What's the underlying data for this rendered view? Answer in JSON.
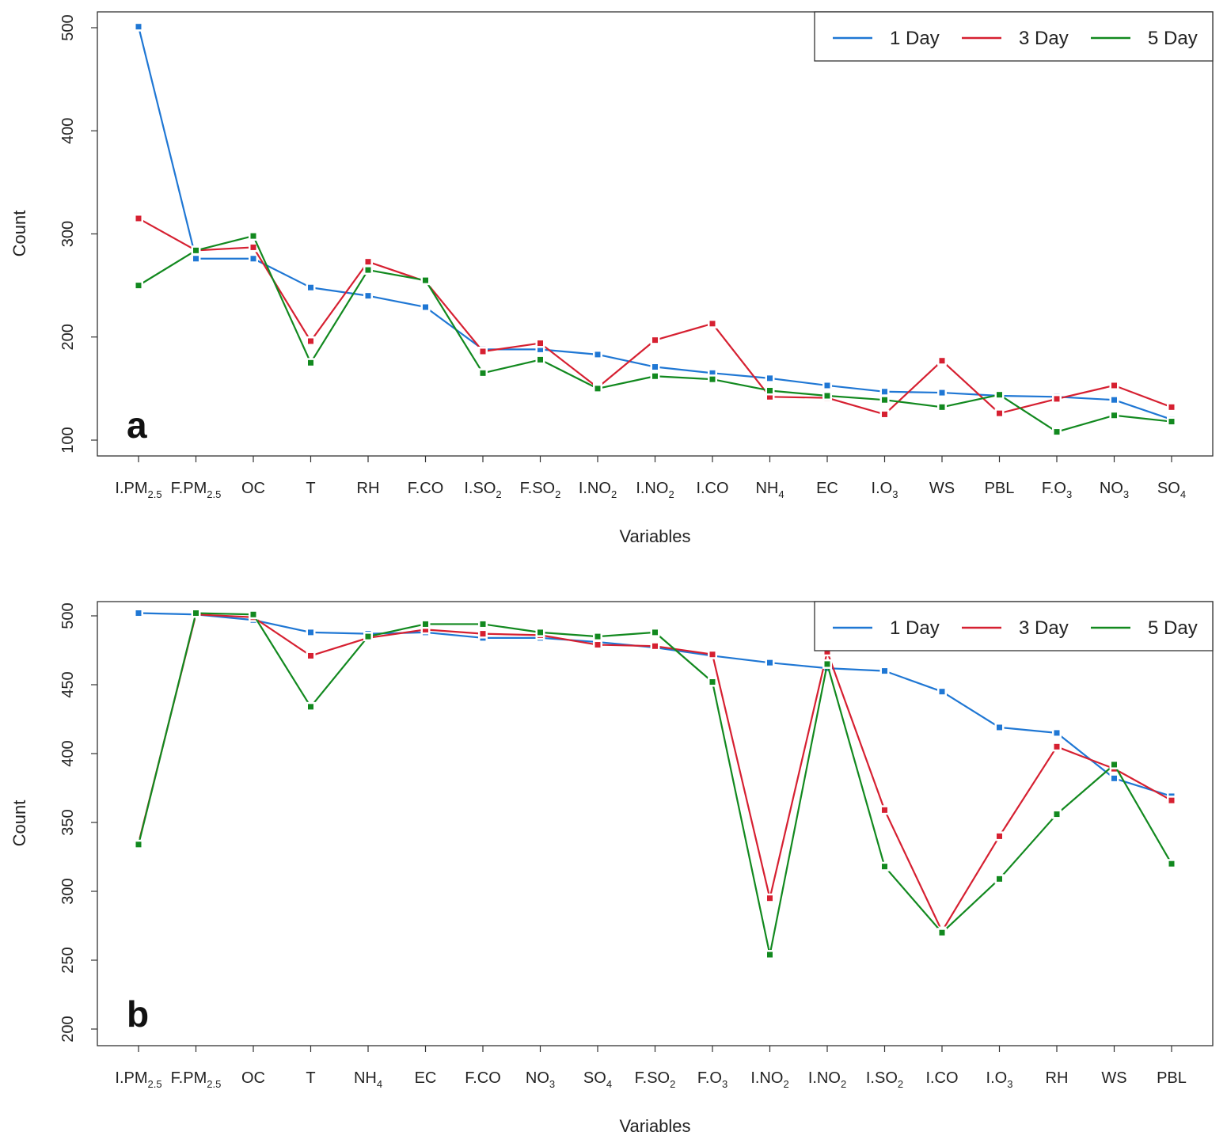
{
  "colors": {
    "series_1": "#1f77d4",
    "series_2": "#d62031",
    "series_3": "#12891f",
    "axis": "#333333"
  },
  "chart_data": [
    {
      "type": "line",
      "panel_label": "a",
      "xlabel": "Variables",
      "ylabel": "Count",
      "ylim": [
        100,
        500
      ],
      "yticks": [
        100,
        200,
        300,
        400,
        500
      ],
      "categories": [
        {
          "base": "I.PM",
          "sub": "2.5"
        },
        {
          "base": "F.PM",
          "sub": "2.5"
        },
        {
          "base": "OC",
          "sub": ""
        },
        {
          "base": "T",
          "sub": ""
        },
        {
          "base": "RH",
          "sub": ""
        },
        {
          "base": "F.CO",
          "sub": ""
        },
        {
          "base": "I.SO",
          "sub": "2"
        },
        {
          "base": "F.SO",
          "sub": "2"
        },
        {
          "base": "I.NO",
          "sub": "2"
        },
        {
          "base": "I.NO",
          "sub": "2"
        },
        {
          "base": "I.CO",
          "sub": ""
        },
        {
          "base": "NH",
          "sub": "4"
        },
        {
          "base": "EC",
          "sub": ""
        },
        {
          "base": "I.O",
          "sub": "3"
        },
        {
          "base": "WS",
          "sub": ""
        },
        {
          "base": "PBL",
          "sub": ""
        },
        {
          "base": "F.O",
          "sub": "3"
        },
        {
          "base": "NO",
          "sub": "3"
        },
        {
          "base": "SO",
          "sub": "4"
        }
      ],
      "legend": {
        "position": "top-right"
      },
      "series": [
        {
          "name": "1 Day",
          "color": "#1f77d4",
          "values": [
            501,
            276,
            276,
            248,
            240,
            229,
            188,
            188,
            183,
            171,
            165,
            160,
            153,
            147,
            146,
            143,
            142,
            139,
            120
          ]
        },
        {
          "name": "3 Day",
          "color": "#d62031",
          "values": [
            315,
            284,
            287,
            196,
            273,
            254,
            186,
            194,
            151,
            197,
            213,
            142,
            141,
            125,
            177,
            126,
            140,
            153,
            132
          ]
        },
        {
          "name": "5 Day",
          "color": "#12891f",
          "values": [
            250,
            284,
            298,
            175,
            265,
            255,
            165,
            178,
            150,
            162,
            159,
            148,
            143,
            139,
            132,
            144,
            108,
            124,
            118
          ]
        }
      ]
    },
    {
      "type": "line",
      "panel_label": "b",
      "xlabel": "Variables",
      "ylabel": "Count",
      "ylim": [
        200,
        500
      ],
      "yticks": [
        200,
        250,
        300,
        350,
        400,
        450,
        500
      ],
      "categories": [
        {
          "base": "I.PM",
          "sub": "2.5"
        },
        {
          "base": "F.PM",
          "sub": "2.5"
        },
        {
          "base": "OC",
          "sub": ""
        },
        {
          "base": "T",
          "sub": ""
        },
        {
          "base": "NH",
          "sub": "4"
        },
        {
          "base": "EC",
          "sub": ""
        },
        {
          "base": "F.CO",
          "sub": ""
        },
        {
          "base": "NO",
          "sub": "3"
        },
        {
          "base": "SO",
          "sub": "4"
        },
        {
          "base": "F.SO",
          "sub": "2"
        },
        {
          "base": "F.O",
          "sub": "3"
        },
        {
          "base": "I.NO",
          "sub": "2"
        },
        {
          "base": "I.NO",
          "sub": "2"
        },
        {
          "base": "I.SO",
          "sub": "2"
        },
        {
          "base": "I.CO",
          "sub": ""
        },
        {
          "base": "I.O",
          "sub": "3"
        },
        {
          "base": "RH",
          "sub": ""
        },
        {
          "base": "WS",
          "sub": ""
        },
        {
          "base": "PBL",
          "sub": ""
        }
      ],
      "legend": {
        "position": "top-right"
      },
      "series": [
        {
          "name": "1 Day",
          "color": "#1f77d4",
          "values": [
            502,
            501,
            497,
            488,
            487,
            488,
            484,
            484,
            481,
            477,
            471,
            466,
            462,
            460,
            445,
            419,
            415,
            382,
            369
          ]
        },
        {
          "name": "3 Day",
          "color": "#d62031",
          "values": [
            335,
            501,
            499,
            471,
            484,
            490,
            487,
            486,
            479,
            478,
            472,
            295,
            474,
            359,
            271,
            340,
            405,
            389,
            366
          ]
        },
        {
          "name": "5 Day",
          "color": "#12891f",
          "values": [
            334,
            502,
            501,
            434,
            485,
            494,
            494,
            488,
            485,
            488,
            452,
            254,
            465,
            318,
            270,
            309,
            356,
            392,
            320
          ]
        }
      ]
    }
  ]
}
